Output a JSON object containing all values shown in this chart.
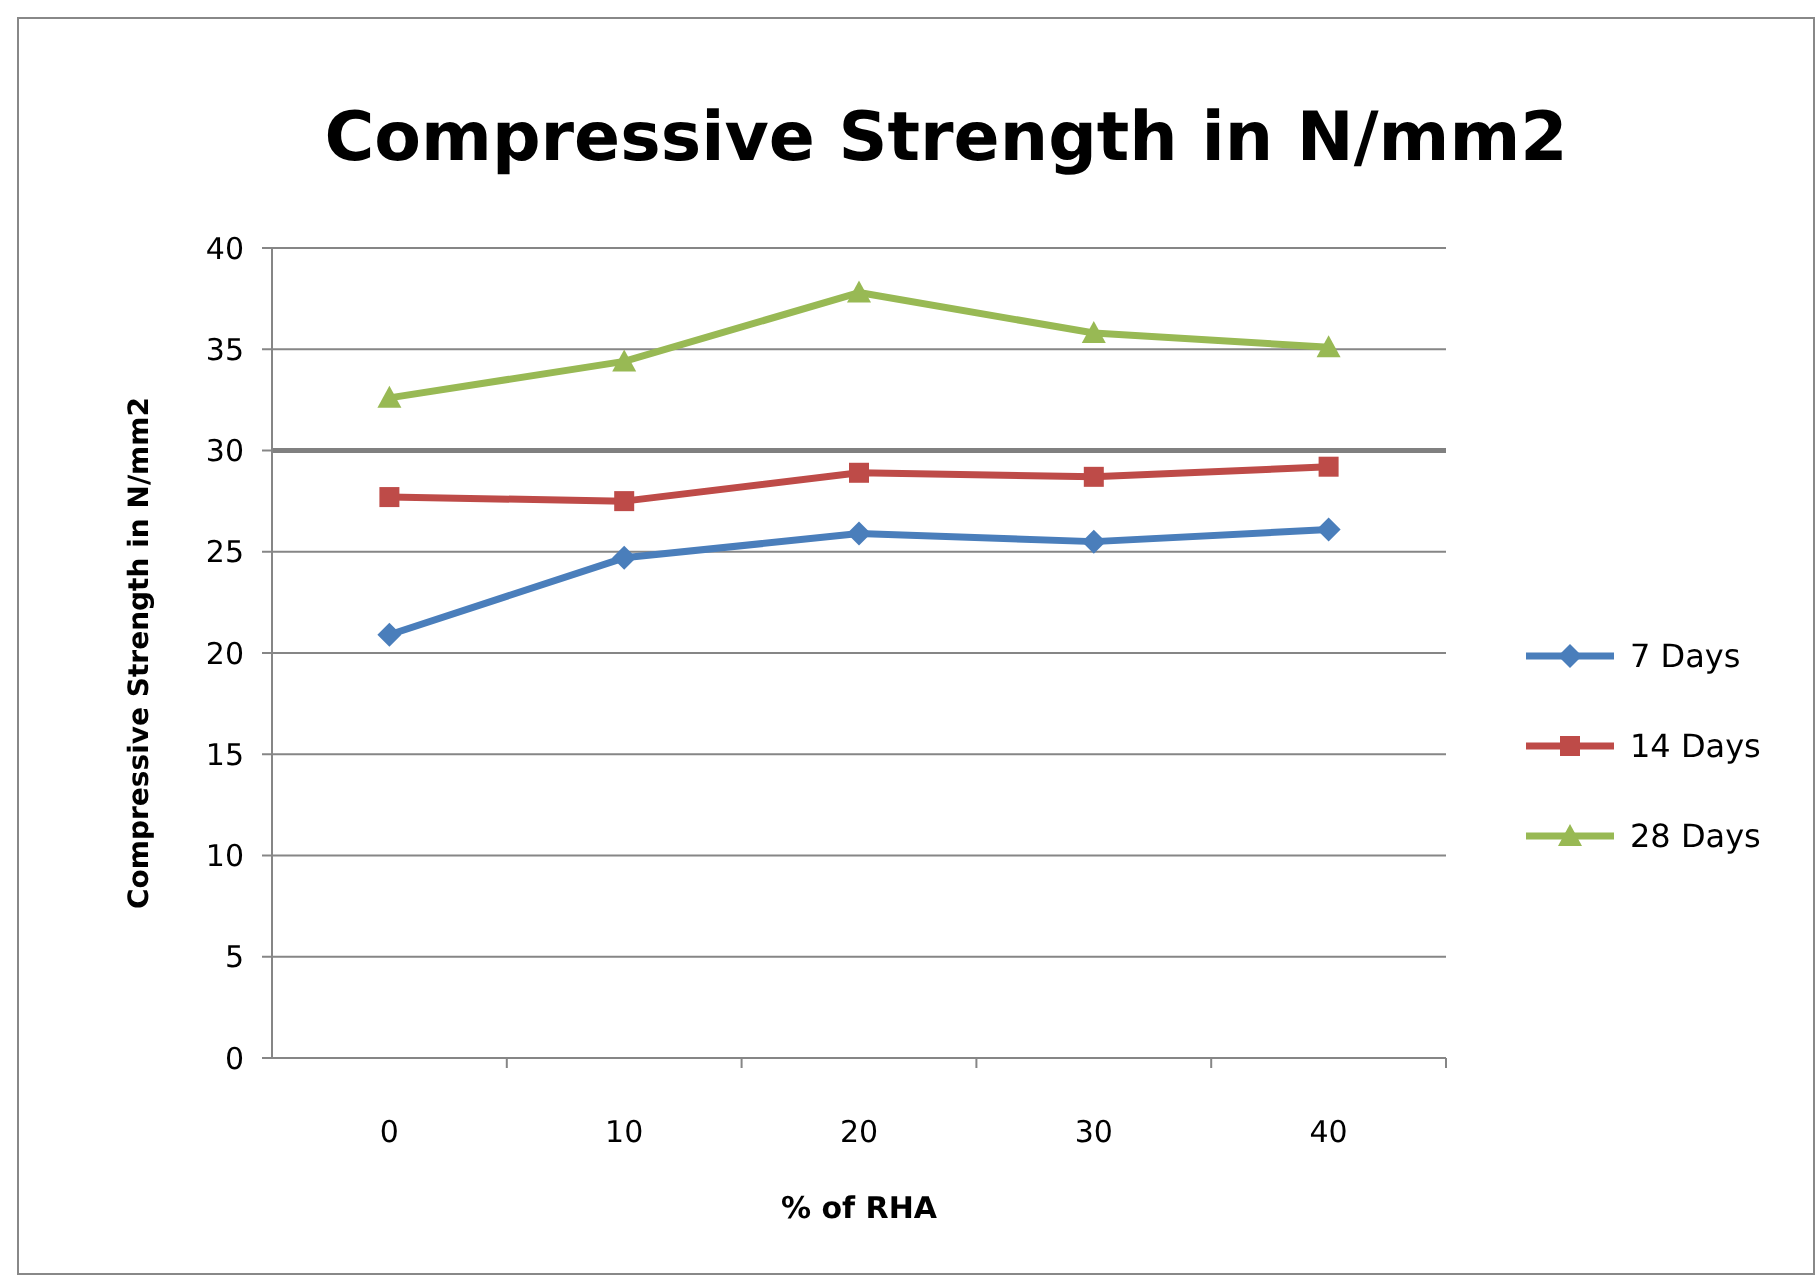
{
  "chart_data": {
    "type": "line",
    "title": "Compressive Strength in N/mm2",
    "xlabel": "% of RHA",
    "ylabel": "Compressive Strength in N/mm2",
    "categories": [
      "0",
      "10",
      "20",
      "30",
      "40"
    ],
    "series": [
      {
        "name": "7 Days",
        "color": "#4a7ebb",
        "marker": "diamond",
        "values": [
          20.9,
          24.7,
          25.9,
          25.5,
          26.1
        ]
      },
      {
        "name": "14 Days",
        "color": "#be4b48",
        "marker": "square",
        "values": [
          27.7,
          27.5,
          28.9,
          28.7,
          29.2
        ]
      },
      {
        "name": "28 Days",
        "color": "#98b954",
        "marker": "triangle",
        "values": [
          32.6,
          34.4,
          37.8,
          35.8,
          35.1
        ]
      }
    ],
    "ylim": [
      0,
      40
    ],
    "yticks": [
      0,
      5,
      10,
      15,
      20,
      25,
      30,
      35,
      40
    ],
    "grid": "y",
    "legend": "right",
    "ref_lines": [
      {
        "axis": "y",
        "value": 30,
        "color": "#808080"
      }
    ]
  }
}
